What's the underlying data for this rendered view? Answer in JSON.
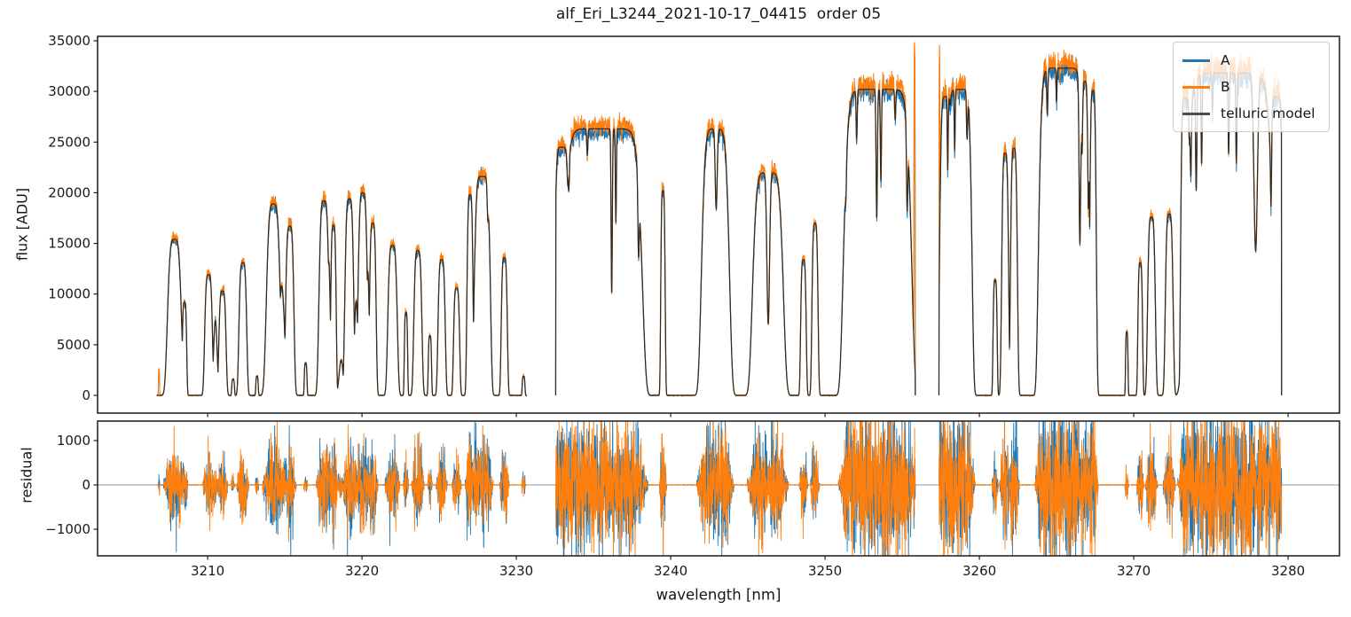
{
  "figure": {
    "title": "alf_Eri_L3244_2021-10-17_04415  order 05"
  },
  "chart_data": {
    "type": "line",
    "title": "alf_Eri_L3244_2021-10-17_04415  order 05",
    "xlabel": "wavelength [nm]",
    "xlim": [
      3202.87,
      3283.33
    ],
    "xticks": [
      3210,
      3220,
      3230,
      3240,
      3250,
      3260,
      3270,
      3280
    ],
    "grid": false,
    "legend_position": "upper right",
    "panels": [
      {
        "name": "flux",
        "ylabel": "flux [ADU]",
        "ylim": [
          -1750,
          35437
        ],
        "yticks": [
          0,
          5000,
          10000,
          15000,
          20000,
          25000,
          30000,
          35000
        ]
      },
      {
        "name": "residual",
        "ylabel": "residual",
        "ylim": [
          -1600,
          1440
        ],
        "yticks": [
          -1000,
          0,
          1000
        ],
        "zero_line": true
      }
    ],
    "legend": [
      {
        "label": "A",
        "color": "#1f77b4"
      },
      {
        "label": "B",
        "color": "#ff7f0e"
      },
      {
        "label": "telluric model",
        "color": "#4d4d4d"
      }
    ],
    "colors": {
      "A": "#1f77b4",
      "B": "#ff7f0e",
      "model": "#1a1a1a",
      "zero_line": "#999999",
      "axes": "#1a1a1a"
    },
    "noise": {
      "seed": 1337,
      "flux_sigma_base": 30,
      "flux_sigma_slope": 0.016,
      "resid_sigma_base": 55,
      "resid_sigma_slope": 0.027,
      "bias_A": -0.009,
      "bias_B": 0.014
    },
    "sample_step_nm": 0.012,
    "segments_note": "humps=[center_nm, peak_ADU, width_nm, steepness, data_only] combined by max; lines=[center_nm, rel_depth, width_nm] multiplicative absorption",
    "segments": [
      {
        "range": [
          3206.7,
          3230.68
        ],
        "humps": [
          [
            3206.85,
            2600,
            0.04,
            4,
            1
          ],
          [
            3207.85,
            15400,
            0.5,
            4
          ],
          [
            3208.5,
            9200,
            0.16,
            4
          ],
          [
            3210.06,
            11900,
            0.28,
            4
          ],
          [
            3210.5,
            7400,
            0.16,
            2
          ],
          [
            3210.96,
            10300,
            0.26,
            4
          ],
          [
            3211.65,
            1600,
            0.1,
            4
          ],
          [
            3212.28,
            13100,
            0.28,
            4
          ],
          [
            3213.2,
            1900,
            0.09,
            4
          ],
          [
            3214.26,
            18900,
            0.5,
            4
          ],
          [
            3214.8,
            10800,
            0.26,
            2
          ],
          [
            3215.32,
            16700,
            0.3,
            4
          ],
          [
            3216.35,
            3200,
            0.1,
            4
          ],
          [
            3217.54,
            19200,
            0.36,
            4
          ],
          [
            3217.85,
            13200,
            0.14,
            2
          ],
          [
            3218.15,
            16800,
            0.2,
            4
          ],
          [
            3218.65,
            3500,
            0.18,
            2
          ],
          [
            3219.18,
            19400,
            0.32,
            4
          ],
          [
            3219.62,
            9300,
            0.16,
            2
          ],
          [
            3220.05,
            20000,
            0.34,
            4
          ],
          [
            3220.38,
            12200,
            0.13,
            2
          ],
          [
            3220.7,
            17000,
            0.24,
            4
          ],
          [
            3221.98,
            14800,
            0.34,
            4
          ],
          [
            3222.85,
            8200,
            0.12,
            4
          ],
          [
            3223.62,
            14300,
            0.29,
            4
          ],
          [
            3224.4,
            5900,
            0.12,
            4
          ],
          [
            3225.16,
            13400,
            0.26,
            4
          ],
          [
            3226.13,
            10600,
            0.22,
            4
          ],
          [
            3227.0,
            19800,
            0.22,
            4
          ],
          [
            3227.35,
            15000,
            0.14,
            2
          ],
          [
            3227.8,
            21600,
            0.55,
            6
          ],
          [
            3229.22,
            13600,
            0.22,
            4
          ],
          [
            3230.47,
            1900,
            0.1,
            4
          ]
        ],
        "lines": [
          [
            3228.15,
            0.14,
            0.06
          ]
        ]
      },
      {
        "range": [
          3232.55,
          3255.85
        ],
        "humps": [
          [
            3232.95,
            24500,
            0.5,
            6
          ],
          [
            3235.6,
            26300,
            2.6,
            12
          ],
          [
            3239.5,
            20200,
            0.16,
            4
          ],
          [
            3242.9,
            26300,
            0.95,
            6
          ],
          [
            3246.3,
            22000,
            1.05,
            6
          ],
          [
            3248.6,
            13400,
            0.2,
            4
          ],
          [
            3249.35,
            17000,
            0.22,
            4
          ],
          [
            3253.4,
            30200,
            2.25,
            12
          ],
          [
            3255.8,
            34300,
            0.05,
            4,
            1
          ]
        ],
        "lines": [
          [
            3233.4,
            0.12,
            0.05
          ],
          [
            3234.6,
            0.1,
            0.05
          ],
          [
            3236.18,
            0.62,
            0.055
          ],
          [
            3236.45,
            0.35,
            0.045
          ],
          [
            3237.92,
            0.33,
            0.06
          ],
          [
            3242.95,
            0.3,
            0.09
          ],
          [
            3246.32,
            0.68,
            0.12
          ],
          [
            3251.35,
            0.12,
            0.05
          ],
          [
            3252.05,
            0.16,
            0.05
          ],
          [
            3253.35,
            0.42,
            0.06
          ],
          [
            3253.62,
            0.3,
            0.05
          ],
          [
            3254.55,
            0.1,
            0.05
          ],
          [
            3255.32,
            0.3,
            0.06
          ]
        ]
      },
      {
        "range": [
          3257.38,
          3279.58
        ],
        "humps": [
          [
            3257.42,
            33200,
            0.04,
            4,
            1
          ],
          [
            3257.85,
            29500,
            0.45,
            6
          ],
          [
            3258.7,
            30200,
            0.85,
            8
          ],
          [
            3261.02,
            11400,
            0.15,
            4
          ],
          [
            3261.67,
            23900,
            0.25,
            4
          ],
          [
            3262.24,
            24400,
            0.25,
            4
          ],
          [
            3265.3,
            32300,
            1.5,
            12
          ],
          [
            3266.84,
            31000,
            0.25,
            4
          ],
          [
            3267.1,
            21000,
            0.1,
            2
          ],
          [
            3267.36,
            30100,
            0.24,
            4
          ],
          [
            3269.55,
            6300,
            0.09,
            4
          ],
          [
            3270.42,
            13100,
            0.17,
            4
          ],
          [
            3271.15,
            17600,
            0.28,
            4
          ],
          [
            3272.3,
            17900,
            0.28,
            4
          ],
          [
            3273.35,
            29300,
            0.33,
            6
          ],
          [
            3276.2,
            31800,
            2.95,
            12
          ],
          [
            3279.25,
            29500,
            0.45,
            6
          ]
        ],
        "lines": [
          [
            3257.95,
            0.25,
            0.04
          ],
          [
            3258.4,
            0.2,
            0.04
          ],
          [
            3259.2,
            0.15,
            0.05
          ],
          [
            3264.4,
            0.14,
            0.05
          ],
          [
            3265.0,
            0.1,
            0.04
          ],
          [
            3266.51,
            0.5,
            0.07
          ],
          [
            3273.7,
            0.22,
            0.05
          ],
          [
            3274.05,
            0.35,
            0.06
          ],
          [
            3274.4,
            0.28,
            0.05
          ],
          [
            3275.1,
            0.12,
            0.04
          ],
          [
            3276.15,
            0.25,
            0.05
          ],
          [
            3276.65,
            0.28,
            0.05
          ],
          [
            3277.9,
            0.55,
            0.16
          ],
          [
            3278.9,
            0.2,
            0.05
          ]
        ]
      }
    ]
  }
}
